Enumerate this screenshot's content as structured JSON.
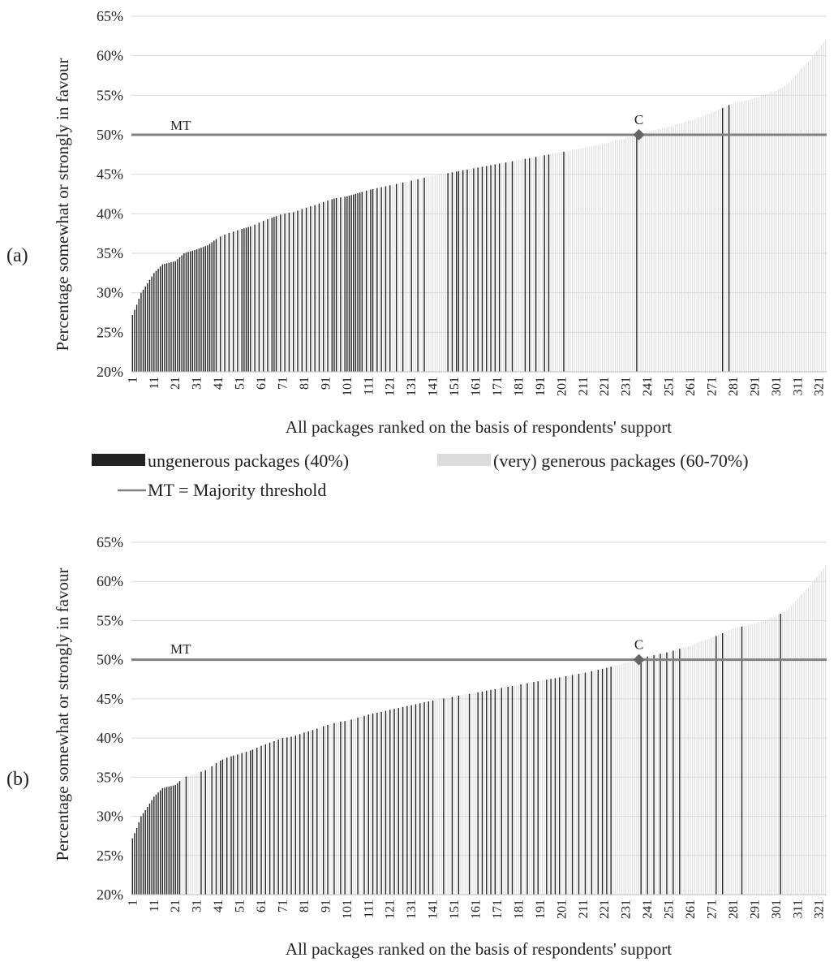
{
  "legend": {
    "ungenerous_label": "ungenerous packages (40%)",
    "generous_label": "(very) generous packages (60-70%)",
    "mt_label": "MT = Majority threshold",
    "ungenerous_color": "#222222",
    "generous_color": "#dcdcdc",
    "mt_color": "#808080"
  },
  "chart_data": [
    {
      "panel_label": "(a)",
      "type": "bar",
      "title": "",
      "ylabel": "Percentage  somewhat  or  strongly  in  favour",
      "xlabel": "All  packages  ranked  on  the  basis  of  respondents'  support",
      "ylim": [
        20,
        65
      ],
      "yticks": [
        "20%",
        "25%",
        "30%",
        "35%",
        "40%",
        "45%",
        "50%",
        "55%",
        "60%",
        "65%"
      ],
      "xtick_labels": [
        "1",
        "11",
        "21",
        "31",
        "41",
        "51",
        "61",
        "71",
        "81",
        "91",
        "101",
        "111",
        "121",
        "131",
        "141",
        "151",
        "161",
        "171",
        "181",
        "191",
        "201",
        "211",
        "221",
        "231",
        "241",
        "251",
        "261",
        "271",
        "281",
        "291",
        "301",
        "311",
        "321"
      ],
      "n_packages": 324,
      "support_curve": [
        [
          1,
          27.2
        ],
        [
          3,
          28.5
        ],
        [
          5,
          30
        ],
        [
          8,
          31.2
        ],
        [
          11,
          32.5
        ],
        [
          15,
          33.6
        ],
        [
          21,
          34
        ],
        [
          25,
          35
        ],
        [
          31,
          35.5
        ],
        [
          36,
          36
        ],
        [
          41,
          37
        ],
        [
          45,
          37.5
        ],
        [
          51,
          38
        ],
        [
          56,
          38.4
        ],
        [
          61,
          39
        ],
        [
          66,
          39.5
        ],
        [
          71,
          40
        ],
        [
          76,
          40.2
        ],
        [
          81,
          40.7
        ],
        [
          86,
          41.1
        ],
        [
          91,
          41.6
        ],
        [
          96,
          42
        ],
        [
          101,
          42.2
        ],
        [
          111,
          43
        ],
        [
          121,
          43.6
        ],
        [
          131,
          44.2
        ],
        [
          141,
          44.8
        ],
        [
          151,
          45.3
        ],
        [
          161,
          45.8
        ],
        [
          171,
          46.3
        ],
        [
          181,
          46.8
        ],
        [
          191,
          47.3
        ],
        [
          201,
          47.8
        ],
        [
          211,
          48.3
        ],
        [
          221,
          48.9
        ],
        [
          231,
          49.6
        ],
        [
          237,
          50
        ],
        [
          241,
          50.4
        ],
        [
          251,
          51
        ],
        [
          261,
          51.8
        ],
        [
          271,
          52.8
        ],
        [
          281,
          54
        ],
        [
          291,
          54.6
        ],
        [
          301,
          55.6
        ],
        [
          306,
          56.3
        ],
        [
          311,
          57.8
        ],
        [
          316,
          59.2
        ],
        [
          321,
          61
        ],
        [
          324,
          62
        ]
      ],
      "series": [
        {
          "name": "ungenerous packages (40%)",
          "ranks": [
            1,
            2,
            3,
            4,
            5,
            6,
            7,
            8,
            9,
            10,
            11,
            12,
            13,
            14,
            15,
            16,
            17,
            18,
            19,
            20,
            21,
            22,
            23,
            24,
            25,
            26,
            27,
            28,
            29,
            30,
            31,
            32,
            33,
            34,
            35,
            36,
            37,
            38,
            39,
            40,
            42,
            44,
            46,
            48,
            50,
            52,
            53,
            54,
            55,
            56,
            58,
            60,
            62,
            64,
            66,
            67,
            68,
            70,
            72,
            74,
            76,
            78,
            80,
            82,
            84,
            86,
            88,
            90,
            92,
            94,
            95,
            96,
            98,
            100,
            101,
            102,
            103,
            104,
            105,
            106,
            107,
            108,
            110,
            112,
            113,
            115,
            117,
            119,
            121,
            124,
            127,
            131,
            134,
            137,
            148,
            150,
            152,
            153,
            155,
            157,
            160,
            162,
            164,
            166,
            168,
            170,
            172,
            175,
            178,
            184,
            186,
            189,
            193,
            195,
            202,
            236,
            276,
            279
          ]
        },
        {
          "name": "(very) generous packages (60-70%)",
          "ranks": "all remaining ranks"
        }
      ],
      "threshold": {
        "label": "MT",
        "value": 50
      },
      "marker": {
        "label": "C",
        "rank": 237,
        "value": 50
      }
    },
    {
      "panel_label": "(b)",
      "type": "bar",
      "title": "",
      "ylabel": "Percentage somewhat or strongly in favour",
      "xlabel": "All packages ranked on the basis of respondents' support",
      "ylim": [
        20,
        65
      ],
      "yticks": [
        "20%",
        "25%",
        "30%",
        "35%",
        "40%",
        "45%",
        "50%",
        "55%",
        "60%",
        "65%"
      ],
      "xtick_labels": [
        "1",
        "11",
        "21",
        "31",
        "41",
        "51",
        "61",
        "71",
        "81",
        "91",
        "101",
        "111",
        "121",
        "131",
        "141",
        "151",
        "161",
        "171",
        "181",
        "191",
        "201",
        "211",
        "221",
        "231",
        "241",
        "251",
        "261",
        "271",
        "281",
        "291",
        "301",
        "311",
        "321"
      ],
      "n_packages": 324,
      "support_curve": [
        [
          1,
          27.2
        ],
        [
          3,
          28.5
        ],
        [
          5,
          30
        ],
        [
          8,
          31.2
        ],
        [
          11,
          32.5
        ],
        [
          15,
          33.6
        ],
        [
          21,
          34
        ],
        [
          25,
          35
        ],
        [
          31,
          35.5
        ],
        [
          36,
          36
        ],
        [
          41,
          37
        ],
        [
          45,
          37.5
        ],
        [
          51,
          38
        ],
        [
          56,
          38.4
        ],
        [
          61,
          39
        ],
        [
          66,
          39.5
        ],
        [
          71,
          40
        ],
        [
          76,
          40.2
        ],
        [
          81,
          40.7
        ],
        [
          86,
          41.1
        ],
        [
          91,
          41.6
        ],
        [
          96,
          42
        ],
        [
          101,
          42.2
        ],
        [
          111,
          43
        ],
        [
          121,
          43.6
        ],
        [
          131,
          44.2
        ],
        [
          141,
          44.8
        ],
        [
          151,
          45.3
        ],
        [
          161,
          45.8
        ],
        [
          171,
          46.3
        ],
        [
          181,
          46.8
        ],
        [
          191,
          47.3
        ],
        [
          201,
          47.8
        ],
        [
          211,
          48.3
        ],
        [
          221,
          48.9
        ],
        [
          231,
          49.6
        ],
        [
          237,
          50
        ],
        [
          241,
          50.4
        ],
        [
          251,
          51
        ],
        [
          261,
          51.8
        ],
        [
          271,
          52.8
        ],
        [
          281,
          54
        ],
        [
          291,
          54.6
        ],
        [
          301,
          55.6
        ],
        [
          306,
          56.3
        ],
        [
          311,
          57.8
        ],
        [
          316,
          59.2
        ],
        [
          321,
          61
        ],
        [
          324,
          62
        ]
      ],
      "series": [
        {
          "name": "ungenerous packages (40%)",
          "ranks": [
            1,
            2,
            3,
            4,
            5,
            6,
            7,
            8,
            9,
            10,
            11,
            12,
            13,
            14,
            15,
            16,
            17,
            18,
            19,
            20,
            21,
            22,
            23,
            26,
            33,
            35,
            38,
            40,
            42,
            43,
            45,
            47,
            48,
            50,
            52,
            54,
            56,
            57,
            59,
            61,
            63,
            65,
            67,
            69,
            71,
            73,
            75,
            77,
            79,
            81,
            83,
            85,
            87,
            90,
            92,
            95,
            98,
            100,
            103,
            106,
            109,
            111,
            113,
            115,
            117,
            119,
            121,
            123,
            125,
            127,
            129,
            131,
            133,
            135,
            137,
            139,
            141,
            146,
            150,
            153,
            158,
            162,
            164,
            166,
            168,
            170,
            173,
            176,
            178,
            182,
            185,
            188,
            190,
            194,
            196,
            198,
            200,
            203,
            206,
            209,
            212,
            215,
            218,
            220,
            222,
            224,
            238,
            241,
            244,
            247,
            250,
            253,
            256,
            273,
            276,
            285,
            303
          ]
        },
        {
          "name": "(very) generous packages (60-70%)",
          "ranks": "all remaining ranks"
        }
      ],
      "threshold": {
        "label": "MT",
        "value": 50
      },
      "marker": {
        "label": "C",
        "rank": 237,
        "value": 50
      }
    }
  ]
}
